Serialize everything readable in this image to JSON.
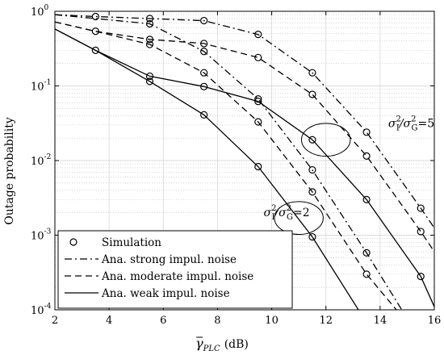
{
  "chart_data": {
    "type": "line",
    "title": "",
    "xlabel": "γ̄_PLC (dB)",
    "xlabel_parts": {
      "symbol": "γ",
      "subscript": "PLC",
      "unit": "(dB)"
    },
    "ylabel": "Outage probability",
    "xlim": [
      2,
      16
    ],
    "ylim": [
      0.0001,
      1
    ],
    "yscale": "log",
    "grid": true,
    "xticks": [
      2,
      4,
      6,
      8,
      10,
      12,
      14,
      16
    ],
    "xtick_labels": [
      "2",
      "4",
      "6",
      "8",
      "10",
      "12",
      "14",
      "16"
    ],
    "yticks": [
      0.0001,
      0.001,
      0.01,
      0.1,
      1
    ],
    "ytick_labels": [
      {
        "base": "10",
        "exp": "-4"
      },
      {
        "base": "10",
        "exp": "-3"
      },
      {
        "base": "10",
        "exp": "-2"
      },
      {
        "base": "10",
        "exp": "-1"
      },
      {
        "base": "10",
        "exp": "0"
      }
    ],
    "legend": {
      "position": "bottom-left",
      "entries": [
        {
          "label": "Simulation",
          "style": "marker"
        },
        {
          "label": "Ana. strong impul. noise",
          "style": "dashdot"
        },
        {
          "label": "Ana. moderate impul. noise",
          "style": "dashed"
        },
        {
          "label": "Ana. weak impul. noise",
          "style": "solid"
        }
      ]
    },
    "annotations": [
      {
        "text_parts": [
          "σ",
          "I",
          "2",
          "/σ",
          "G",
          "2",
          "=5"
        ],
        "x": 14.3,
        "y": 0.028
      },
      {
        "text_parts": [
          "σ",
          "I",
          "2",
          "/σ",
          "G",
          "2",
          "=2"
        ],
        "x": 9.7,
        "y": 0.0018
      }
    ],
    "ellipses": [
      {
        "cx": 12.0,
        "cy": 0.019,
        "rx": 0.9,
        "ry_decades": 0.22
      },
      {
        "cx": 11.0,
        "cy": 0.0017,
        "rx": 0.9,
        "ry_decades": 0.22
      }
    ],
    "series": [
      {
        "group": "5",
        "style": "dashdot",
        "x": [
          2,
          3.5,
          5.5,
          7.5,
          9.5,
          11.5,
          13.5,
          15.5,
          16
        ],
        "y": [
          0.9,
          0.85,
          0.8,
          0.75,
          0.49,
          0.15,
          0.024,
          0.0023,
          0.00125
        ]
      },
      {
        "group": "5",
        "style": "dashed",
        "x": [
          2,
          3.5,
          5.5,
          7.5,
          9.5,
          11.5,
          13.5,
          15.5,
          16
        ],
        "y": [
          0.72,
          0.54,
          0.42,
          0.37,
          0.24,
          0.077,
          0.0115,
          0.00112,
          0.0006
        ]
      },
      {
        "group": "5",
        "style": "solid",
        "x": [
          2,
          3.5,
          5.5,
          7.5,
          9.5,
          11.5,
          13.5,
          15.5,
          16
        ],
        "y": [
          0.58,
          0.3,
          0.135,
          0.098,
          0.062,
          0.019,
          0.003,
          0.00028,
          0.00011
        ]
      },
      {
        "group": "2",
        "style": "dashdot",
        "x": [
          2,
          3.5,
          5.5,
          7.5,
          9.5,
          11.5,
          13.5,
          14.8
        ],
        "y": [
          0.9,
          0.8,
          0.68,
          0.29,
          0.067,
          0.0075,
          0.00058,
          0.0001
        ]
      },
      {
        "group": "2",
        "style": "dashed",
        "x": [
          2,
          3.5,
          5.5,
          7.5,
          9.5,
          11.5,
          13.5,
          14.6
        ],
        "y": [
          0.72,
          0.54,
          0.36,
          0.15,
          0.033,
          0.0038,
          0.0003,
          0.0001
        ]
      },
      {
        "group": "2",
        "style": "solid",
        "x": [
          2,
          3.5,
          5.5,
          7.5,
          9.5,
          11.5,
          13.2
        ],
        "y": [
          0.58,
          0.3,
          0.115,
          0.041,
          0.0083,
          0.00095,
          0.0001
        ]
      }
    ],
    "markers": [
      {
        "x": 3.5,
        "y": 0.85
      },
      {
        "x": 5.5,
        "y": 0.8
      },
      {
        "x": 7.5,
        "y": 0.75
      },
      {
        "x": 9.5,
        "y": 0.49
      },
      {
        "x": 11.5,
        "y": 0.15
      },
      {
        "x": 13.5,
        "y": 0.024
      },
      {
        "x": 15.5,
        "y": 0.0023
      },
      {
        "x": 3.5,
        "y": 0.54
      },
      {
        "x": 5.5,
        "y": 0.42
      },
      {
        "x": 7.5,
        "y": 0.37
      },
      {
        "x": 9.5,
        "y": 0.24
      },
      {
        "x": 11.5,
        "y": 0.077
      },
      {
        "x": 13.5,
        "y": 0.0115
      },
      {
        "x": 15.5,
        "y": 0.00112
      },
      {
        "x": 3.5,
        "y": 0.3
      },
      {
        "x": 5.5,
        "y": 0.135
      },
      {
        "x": 7.5,
        "y": 0.098
      },
      {
        "x": 9.5,
        "y": 0.062
      },
      {
        "x": 11.5,
        "y": 0.019
      },
      {
        "x": 13.5,
        "y": 0.003
      },
      {
        "x": 15.5,
        "y": 0.00028
      },
      {
        "x": 5.5,
        "y": 0.68
      },
      {
        "x": 7.5,
        "y": 0.29
      },
      {
        "x": 9.5,
        "y": 0.067
      },
      {
        "x": 11.5,
        "y": 0.0075
      },
      {
        "x": 13.5,
        "y": 0.00058
      },
      {
        "x": 5.5,
        "y": 0.36
      },
      {
        "x": 7.5,
        "y": 0.15
      },
      {
        "x": 9.5,
        "y": 0.033
      },
      {
        "x": 11.5,
        "y": 0.0038
      },
      {
        "x": 13.5,
        "y": 0.0003
      },
      {
        "x": 5.5,
        "y": 0.115
      },
      {
        "x": 7.5,
        "y": 0.041
      },
      {
        "x": 9.5,
        "y": 0.0083
      },
      {
        "x": 11.5,
        "y": 0.00095
      }
    ]
  }
}
